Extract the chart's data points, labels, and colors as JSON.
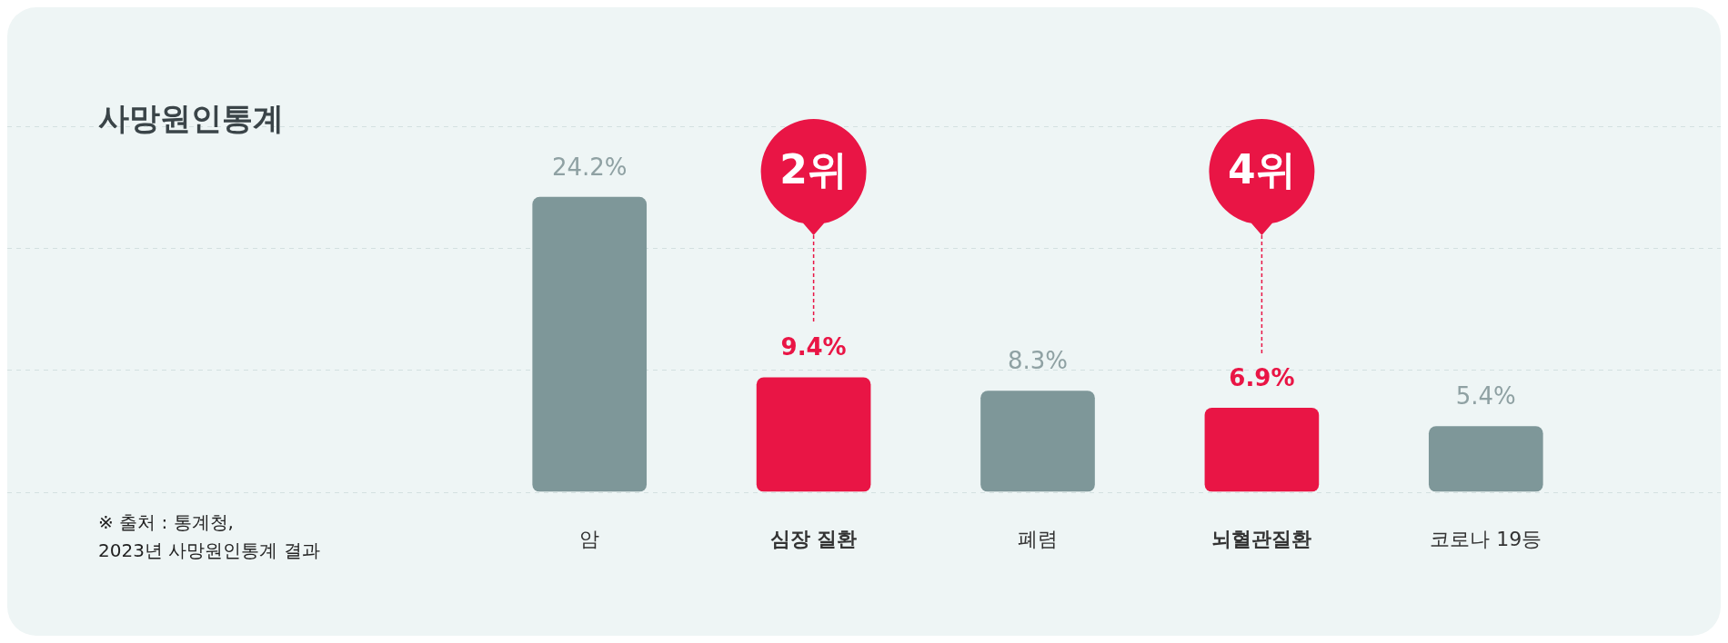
{
  "chart_data": {
    "type": "bar",
    "title": "사망원인통계",
    "categories": [
      "암",
      "심장 질환",
      "폐렴",
      "뇌혈관질환",
      "코로나 19등"
    ],
    "values": [
      24.2,
      9.4,
      8.3,
      6.9,
      5.4
    ],
    "value_labels": [
      "24.2%",
      "9.4%",
      "8.3%",
      "6.9%",
      "5.4%"
    ],
    "colors": [
      "#7e9799",
      "#e91545",
      "#7e9799",
      "#e91545",
      "#7e9799"
    ],
    "ylim": [
      0,
      30
    ],
    "yticks": [
      {
        "value": 0,
        "label": null
      },
      {
        "value": 10,
        "label": null
      },
      {
        "value": 20,
        "label": null
      },
      {
        "value": 30,
        "label": null
      }
    ],
    "grid": "y",
    "annotations": [
      "2위",
      "4위",
      "※ 출처 : 통계청,\n2023년 사망원인통계 결과"
    ]
  }
}
